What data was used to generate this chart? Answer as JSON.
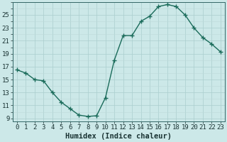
{
  "title": "",
  "xlabel": "Humidex (Indice chaleur)",
  "ylabel": "",
  "x": [
    0,
    1,
    2,
    3,
    4,
    5,
    6,
    7,
    8,
    9,
    10,
    11,
    12,
    13,
    14,
    15,
    16,
    17,
    18,
    19,
    20,
    21,
    22,
    23
  ],
  "y": [
    16.5,
    16.0,
    15.0,
    14.8,
    13.0,
    11.5,
    10.5,
    9.5,
    9.3,
    9.4,
    12.2,
    18.0,
    21.8,
    21.8,
    24.0,
    24.8,
    26.3,
    26.6,
    26.3,
    25.0,
    23.0,
    21.5,
    20.5,
    19.3
  ],
  "line_color": "#1a6b5a",
  "marker": "+",
  "marker_size": 4,
  "bg_color": "#cce8e8",
  "grid_major_color": "#aacece",
  "grid_minor_color": "#bcd8d8",
  "ylim": [
    8.5,
    27
  ],
  "yticks": [
    9,
    11,
    13,
    15,
    17,
    19,
    21,
    23,
    25
  ],
  "xlim": [
    -0.5,
    23.5
  ],
  "xticks": [
    0,
    1,
    2,
    3,
    4,
    5,
    6,
    7,
    8,
    9,
    10,
    11,
    12,
    13,
    14,
    15,
    16,
    17,
    18,
    19,
    20,
    21,
    22,
    23
  ],
  "tick_fontsize": 6.5,
  "xlabel_fontsize": 7.5,
  "spine_color": "#336666"
}
